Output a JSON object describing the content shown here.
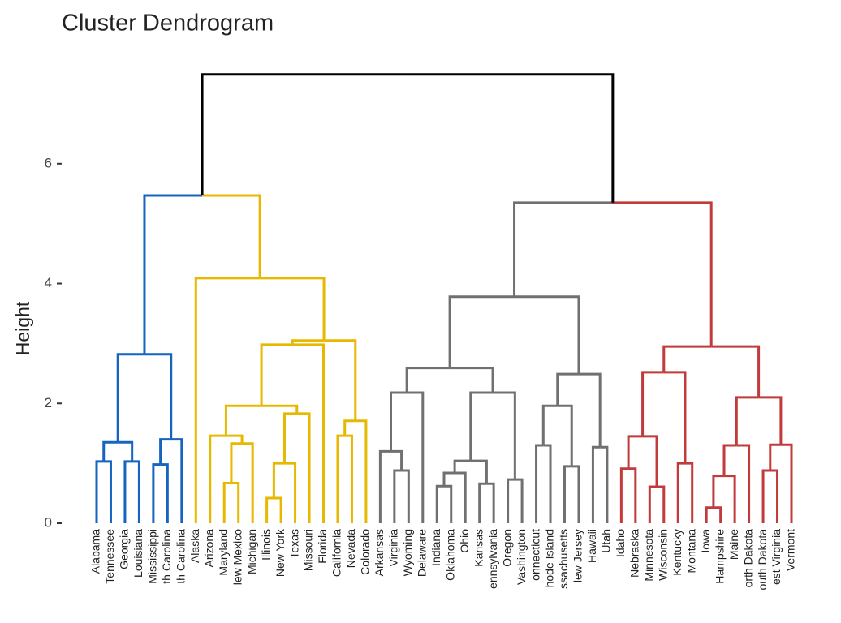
{
  "chart_data": {
    "type": "dendrogram",
    "title": "Cluster Dendrogram",
    "y_label": "Height",
    "ylim": [
      0,
      7.5
    ],
    "yticks": [
      0,
      2,
      4,
      6
    ],
    "labels": [
      "Alabama",
      "Tennessee",
      "Georgia",
      "Louisiana",
      "Mississippi",
      "th Carolina",
      "th Carolina",
      "Alaska",
      "Arizona",
      "Maryland",
      "lew Mexico",
      "Michigan",
      "Illinois",
      "New York",
      "Texas",
      "Missouri",
      "Florida",
      "California",
      "Nevada",
      "Colorado",
      "Arkansas",
      "Virginia",
      "Wyoming",
      "Delaware",
      "Indiana",
      "Oklahoma",
      "Ohio",
      "Kansas",
      "ennsylvania",
      "Oregon",
      "Vashington",
      "onnecticut",
      "hode Island",
      "ssachusetts",
      "lew Jersey",
      "Hawaii",
      "Utah",
      "Idaho",
      "Nebraska",
      "Minnesota",
      "Wisconsin",
      "Kentucky",
      "Montana",
      "Iowa",
      "Hampshire",
      "Maine",
      "orth Dakota",
      "outh Dakota",
      "est Virginia",
      "Vermont"
    ],
    "leaf_cluster": [
      0,
      0,
      0,
      0,
      0,
      0,
      0,
      1,
      1,
      1,
      1,
      1,
      1,
      1,
      1,
      1,
      1,
      1,
      1,
      1,
      2,
      2,
      2,
      2,
      2,
      2,
      2,
      2,
      2,
      2,
      2,
      2,
      2,
      2,
      2,
      2,
      2,
      3,
      3,
      3,
      3,
      3,
      3,
      3,
      3,
      3,
      3,
      3,
      3,
      3
    ],
    "cluster_colors": [
      "#1565c0",
      "#e7b800",
      "#707070",
      "#c23b3b"
    ],
    "link_color": "#000000",
    "merges": [
      [
        0,
        1,
        1.03
      ],
      [
        2,
        3,
        1.03
      ],
      [
        50,
        51,
        1.35
      ],
      [
        4,
        5,
        0.98
      ],
      [
        53,
        6,
        1.4
      ],
      [
        52,
        54,
        2.82
      ],
      [
        9,
        10,
        0.67
      ],
      [
        56,
        11,
        1.33
      ],
      [
        8,
        57,
        1.46
      ],
      [
        12,
        13,
        0.42
      ],
      [
        59,
        14,
        1.0
      ],
      [
        60,
        15,
        1.83
      ],
      [
        58,
        61,
        1.96
      ],
      [
        62,
        16,
        2.98
      ],
      [
        17,
        18,
        1.46
      ],
      [
        64,
        19,
        1.71
      ],
      [
        63,
        65,
        3.05
      ],
      [
        7,
        66,
        4.09
      ],
      [
        55,
        67,
        5.47
      ],
      [
        21,
        22,
        0.88
      ],
      [
        20,
        69,
        1.2
      ],
      [
        70,
        23,
        2.18
      ],
      [
        24,
        25,
        0.62
      ],
      [
        72,
        26,
        0.84
      ],
      [
        27,
        28,
        0.66
      ],
      [
        73,
        74,
        1.04
      ],
      [
        29,
        30,
        0.73
      ],
      [
        75,
        76,
        2.18
      ],
      [
        71,
        77,
        2.59
      ],
      [
        31,
        32,
        1.3
      ],
      [
        33,
        34,
        0.95
      ],
      [
        79,
        80,
        1.96
      ],
      [
        35,
        36,
        1.27
      ],
      [
        81,
        82,
        2.49
      ],
      [
        78,
        83,
        3.78
      ],
      [
        37,
        38,
        0.91
      ],
      [
        39,
        40,
        0.61
      ],
      [
        85,
        86,
        1.45
      ],
      [
        41,
        42,
        1.0
      ],
      [
        87,
        88,
        2.52
      ],
      [
        43,
        44,
        0.26
      ],
      [
        90,
        45,
        0.79
      ],
      [
        91,
        46,
        1.3
      ],
      [
        47,
        48,
        0.88
      ],
      [
        93,
        49,
        1.31
      ],
      [
        92,
        94,
        2.1
      ],
      [
        89,
        95,
        2.95
      ],
      [
        84,
        96,
        5.35
      ],
      [
        68,
        97,
        7.49
      ]
    ]
  }
}
